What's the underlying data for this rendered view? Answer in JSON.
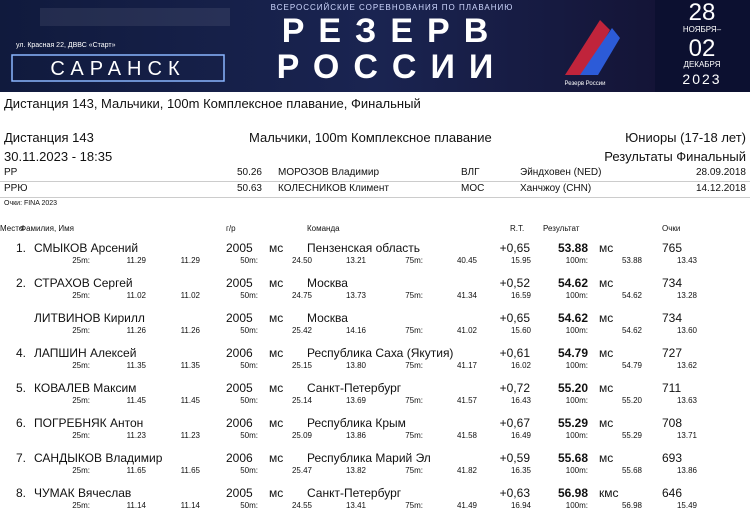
{
  "banner": {
    "address": "ул. Красная 22, ДВВС «Старт»",
    "city": "САРАНСК",
    "subtitle": "ВСЕРОССИЙСКИЕ СОРЕВНОВАНИЯ ПО ПЛАВАНИЮ",
    "title_line1": "РЕЗЕРВ",
    "title_line2": "РОССИИ",
    "logo_text": "Резерв России",
    "date_from": "28",
    "month_from": "НОЯБРЯ–",
    "date_to": "02",
    "month_to": "ДЕКАБРЯ",
    "year": "2023"
  },
  "page_title": "Дистанция 143, Мальчики, 100m Комплексное плавание, Финальный",
  "header": {
    "event": "Дистанция 143",
    "discipline": "Мальчики, 100m Комплексное плавание",
    "age_group": "Юниоры (17-18 лет)",
    "datetime": "30.11.2023 - 18:35",
    "result_type": "Результаты Финальный"
  },
  "records": [
    {
      "code": "РР",
      "time": "50.26",
      "name": "МОРОЗОВ Владимир",
      "team": "ВЛГ",
      "place": "Эйндховен (NED)",
      "date": "28.09.2018"
    },
    {
      "code": "РРЮ",
      "time": "50.63",
      "name": "КОЛЕСНИКОВ Климент",
      "team": "МОС",
      "place": "Ханчжоу (CHN)",
      "date": "14.12.2018"
    }
  ],
  "points_note": "Очки: FINA 2023",
  "columns": {
    "place": "Место",
    "name": "Фамилия, Имя",
    "year": "г/р",
    "team": "Команда",
    "rt": "R.T.",
    "result": "Результат",
    "points": "Очки"
  },
  "split_labels": [
    "25m:",
    "50m:",
    "75m:",
    "100m:"
  ],
  "rows": [
    {
      "place": "1.",
      "name": "СМЫКОВ Арсений",
      "year": "2005",
      "rank": "мс",
      "team": "Пензенская область",
      "rt": "+0,65",
      "result": "53.88",
      "rank2": "мс",
      "points": "765",
      "splits": [
        "11.29",
        "11.29",
        "24.50",
        "13.21",
        "40.45",
        "15.95",
        "53.88",
        "13.43"
      ]
    },
    {
      "place": "2.",
      "name": "СТРАХОВ Сергей",
      "year": "2005",
      "rank": "мс",
      "team": "Москва",
      "rt": "+0,52",
      "result": "54.62",
      "rank2": "мс",
      "points": "734",
      "splits": [
        "11.02",
        "11.02",
        "24.75",
        "13.73",
        "41.34",
        "16.59",
        "54.62",
        "13.28"
      ]
    },
    {
      "name": "ЛИТВИНОВ Кирилл",
      "year": "2005",
      "rank": "мс",
      "team": "Москва",
      "rt": "+0,65",
      "result": "54.62",
      "rank2": "мс",
      "points": "734",
      "splits": [
        "11.26",
        "11.26",
        "25.42",
        "14.16",
        "41.02",
        "15.60",
        "54.62",
        "13.60"
      ]
    },
    {
      "place": "4.",
      "name": "ЛАПШИН Алексей",
      "year": "2006",
      "rank": "мс",
      "team": "Республика Саха (Якутия)",
      "rt": "+0,61",
      "result": "54.79",
      "rank2": "мс",
      "points": "727",
      "splits": [
        "11.35",
        "11.35",
        "25.15",
        "13.80",
        "41.17",
        "16.02",
        "54.79",
        "13.62"
      ]
    },
    {
      "place": "5.",
      "name": "КОВАЛЕВ Максим",
      "year": "2005",
      "rank": "мс",
      "team": "Санкт-Петербург",
      "rt": "+0,72",
      "result": "55.20",
      "rank2": "мс",
      "points": "711",
      "splits": [
        "11.45",
        "11.45",
        "25.14",
        "13.69",
        "41.57",
        "16.43",
        "55.20",
        "13.63"
      ]
    },
    {
      "place": "6.",
      "name": "ПОГРЕБНЯК Антон",
      "year": "2006",
      "rank": "мс",
      "team": "Республика Крым",
      "rt": "+0,67",
      "result": "55.29",
      "rank2": "мс",
      "points": "708",
      "splits": [
        "11.23",
        "11.23",
        "25.09",
        "13.86",
        "41.58",
        "16.49",
        "55.29",
        "13.71"
      ]
    },
    {
      "place": "7.",
      "name": "САНДЫКОВ Владимир",
      "year": "2006",
      "rank": "мс",
      "team": "Республика Марий Эл",
      "rt": "+0,59",
      "result": "55.68",
      "rank2": "мс",
      "points": "693",
      "splits": [
        "11.65",
        "11.65",
        "25.47",
        "13.82",
        "41.82",
        "16.35",
        "55.68",
        "13.86"
      ]
    },
    {
      "place": "8.",
      "name": "ЧУМАК Вячеслав",
      "year": "2005",
      "rank": "мс",
      "team": "Санкт-Петербург",
      "rt": "+0,63",
      "result": "56.98",
      "rank2": "кмс",
      "points": "646",
      "splits": [
        "11.14",
        "11.14",
        "24.55",
        "13.41",
        "41.49",
        "16.94",
        "56.98",
        "15.49"
      ]
    }
  ]
}
